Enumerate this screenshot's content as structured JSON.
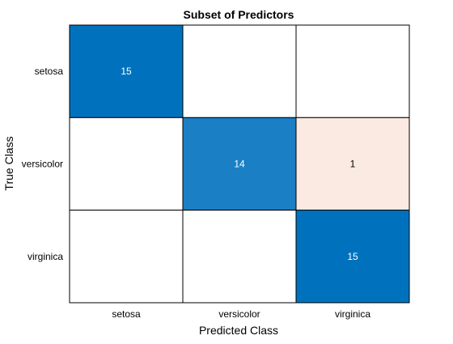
{
  "chart_data": {
    "type": "heatmap",
    "title": "Subset of Predictors",
    "xlabel": "Predicted Class",
    "ylabel": "True Class",
    "x_categories": [
      "setosa",
      "versicolor",
      "virginica"
    ],
    "y_categories": [
      "setosa",
      "versicolor",
      "virginica"
    ],
    "values": [
      [
        15,
        null,
        null
      ],
      [
        null,
        14,
        1
      ],
      [
        null,
        null,
        15
      ]
    ],
    "colors": {
      "diagonal_max": "#0072BD",
      "diagonal_mid": "#1A7FC4",
      "off_diagonal": "#FBEAE1",
      "empty": "#FFFFFF",
      "text_on_dark": "#FFFFFF",
      "text_on_light": "#000000",
      "grid_line": "#000000"
    }
  }
}
